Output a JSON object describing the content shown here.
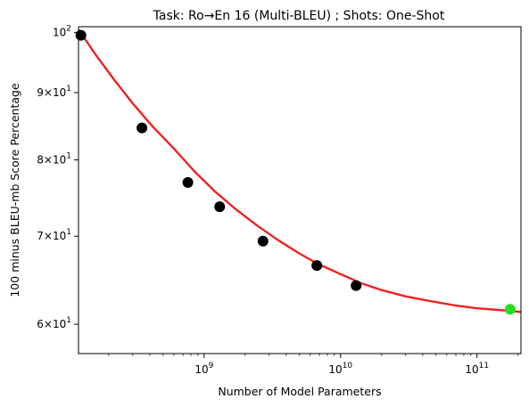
{
  "chart_data": {
    "type": "scatter",
    "title": "Task: Ro→En 16 (Multi-BLEU) ; Shots: One-Shot",
    "xlabel": "Number of Model Parameters",
    "ylabel": "100 minus BLEU-mb Score Percentage",
    "x_scale": "log",
    "y_scale": "log",
    "xlim": [
      120000000,
      210000000000
    ],
    "ylim": [
      57,
      101
    ],
    "x_ticks": [
      {
        "value": 1000000000,
        "base": "10",
        "exp": "9"
      },
      {
        "value": 10000000000,
        "base": "10",
        "exp": "10"
      },
      {
        "value": 100000000000,
        "base": "10",
        "exp": "11"
      }
    ],
    "y_ticks": [
      {
        "value": 60,
        "mant": "6",
        "base": "×10",
        "exp": "1"
      },
      {
        "value": 70,
        "mant": "7",
        "base": "×10",
        "exp": "1"
      },
      {
        "value": 80,
        "mant": "8",
        "base": "×10",
        "exp": "1"
      },
      {
        "value": 90,
        "mant": "9",
        "base": "×10",
        "exp": "1"
      },
      {
        "value": 100,
        "mant": "",
        "base": "10",
        "exp": "2"
      }
    ],
    "points": {
      "color": "#000000",
      "x": [
        125000000,
        350000000,
        760000000,
        1300000000,
        2700000000,
        6700000000,
        13000000000
      ],
      "y": [
        99.5,
        84.6,
        76.9,
        73.7,
        69.4,
        66.5,
        64.2
      ]
    },
    "highlight_point": {
      "x": 175000000000,
      "y": 61.6,
      "color": "#22dd22"
    },
    "fit_curve": {
      "color": "#ee2222",
      "x": [
        120000000,
        160000000,
        220000000,
        300000000,
        420000000,
        600000000,
        850000000,
        1200000000,
        1700000000,
        2500000000,
        3500000000,
        5000000000,
        7000000000,
        10000000000,
        14000000000,
        20000000000,
        30000000000,
        45000000000,
        70000000000,
        100000000000,
        150000000000,
        210000000000
      ],
      "y": [
        100.5,
        96.2,
        92.0,
        88.3,
        84.8,
        81.6,
        78.4,
        75.7,
        73.4,
        71.2,
        69.5,
        67.9,
        66.6,
        65.5,
        64.5,
        63.7,
        63.0,
        62.5,
        62.0,
        61.7,
        61.5,
        61.3
      ]
    },
    "grid": false,
    "legend": "none"
  }
}
